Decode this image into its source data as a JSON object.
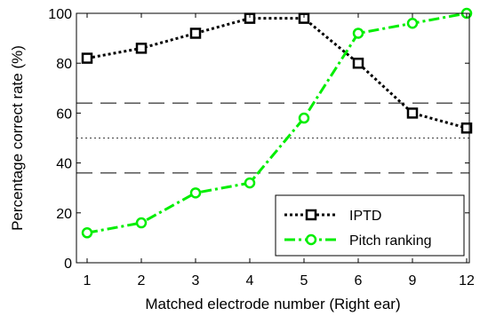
{
  "chart_data": {
    "type": "line",
    "categories": [
      "1",
      "2",
      "3",
      "4",
      "5",
      "6",
      "9",
      "12"
    ],
    "xlabel": "Matched electrode number (Right ear)",
    "ylabel": "Percentage correct rate (%)",
    "ylim": [
      0,
      100
    ],
    "yticks": [
      0,
      20,
      40,
      60,
      80,
      100
    ],
    "grid": false,
    "legend_position": "bottom-right",
    "series": [
      {
        "name": "IPTD",
        "values": [
          82,
          86,
          92,
          98,
          98,
          80,
          60,
          54
        ],
        "color": "#000000",
        "line_style": "dotted",
        "marker": "square"
      },
      {
        "name": "Pitch ranking",
        "values": [
          12,
          16,
          28,
          32,
          58,
          92,
          96,
          100
        ],
        "color": "#00ee00",
        "line_style": "dash-dot",
        "marker": "circle"
      }
    ],
    "reference_lines": [
      {
        "y": 64,
        "style": "dashed"
      },
      {
        "y": 50,
        "style": "dotted"
      },
      {
        "y": 36,
        "style": "dashed"
      }
    ]
  }
}
